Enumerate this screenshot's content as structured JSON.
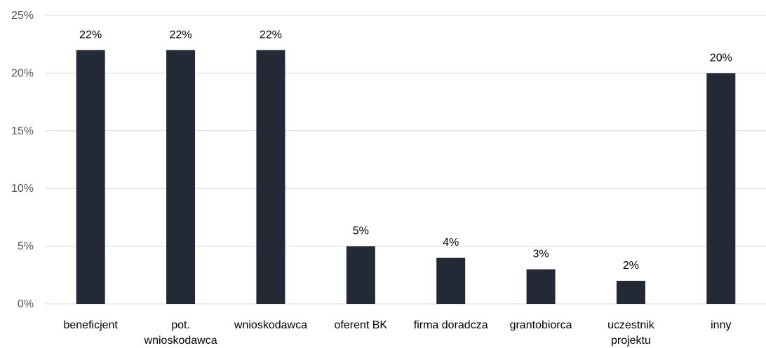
{
  "chart_data": {
    "type": "bar",
    "title": "",
    "xlabel": "",
    "ylabel": "",
    "categories": [
      [
        "beneficjent"
      ],
      [
        "pot.",
        "wnioskodawca"
      ],
      [
        "wnioskodawca"
      ],
      [
        "oferent BK"
      ],
      [
        "firma doradcza"
      ],
      [
        "grantobiorca"
      ],
      [
        "uczestnik",
        "projektu"
      ],
      [
        "inny"
      ]
    ],
    "values": [
      22,
      22,
      22,
      5,
      4,
      3,
      2,
      20
    ],
    "data_labels": [
      "22%",
      "22%",
      "22%",
      "5%",
      "4%",
      "3%",
      "2%",
      "20%"
    ],
    "ylim": [
      0,
      25
    ],
    "yticks": [
      0,
      5,
      10,
      15,
      20,
      25
    ],
    "ytick_labels": [
      "0%",
      "5%",
      "10%",
      "15%",
      "20%",
      "25%"
    ],
    "grid": true,
    "legend": "none",
    "colors": {
      "bar": "#232a35",
      "grid": "#d9d9d9",
      "tick_text": "#595959",
      "label_text": "#000000"
    }
  }
}
